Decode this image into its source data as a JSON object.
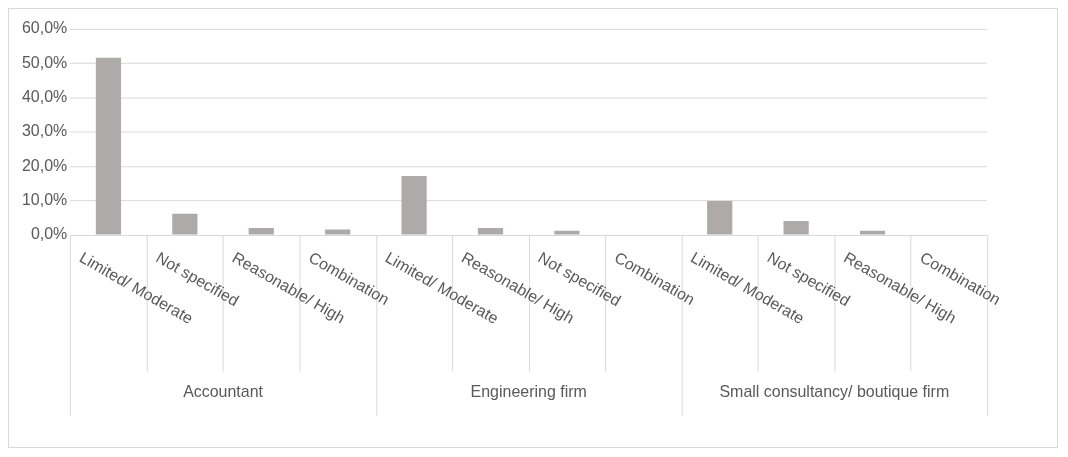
{
  "chart_data": {
    "type": "bar",
    "categories": [
      "Limited/ Moderate",
      "Not specified",
      "Reasonable/ High",
      "Combination",
      "Limited/ Moderate",
      "Reasonable/ High",
      "Not specified",
      "Combination",
      "Limited/ Moderate",
      "Not specified",
      "Reasonable/ High",
      "Combination"
    ],
    "values": [
      51.6,
      6.2,
      2.0,
      1.6,
      17.2,
      2.0,
      1.2,
      0,
      9.9,
      4.1,
      1.2,
      0
    ],
    "color": "#aeaaa9",
    "annotations": [
      "Accountant",
      "Engineering firm",
      "Small consultancy/ boutique firm"
    ],
    "ylim": [
      0,
      60
    ],
    "yticks": [
      {
        "value": 0,
        "label": "0,0%"
      },
      {
        "value": 10,
        "label": "10,0%"
      },
      {
        "value": 20,
        "label": "20,0%"
      },
      {
        "value": 30,
        "label": "30,0%"
      },
      {
        "value": 40,
        "label": "40,0%"
      },
      {
        "value": 50,
        "label": "50,0%"
      },
      {
        "value": 60,
        "label": "60,0%"
      }
    ],
    "grid": "y",
    "legend": false
  }
}
